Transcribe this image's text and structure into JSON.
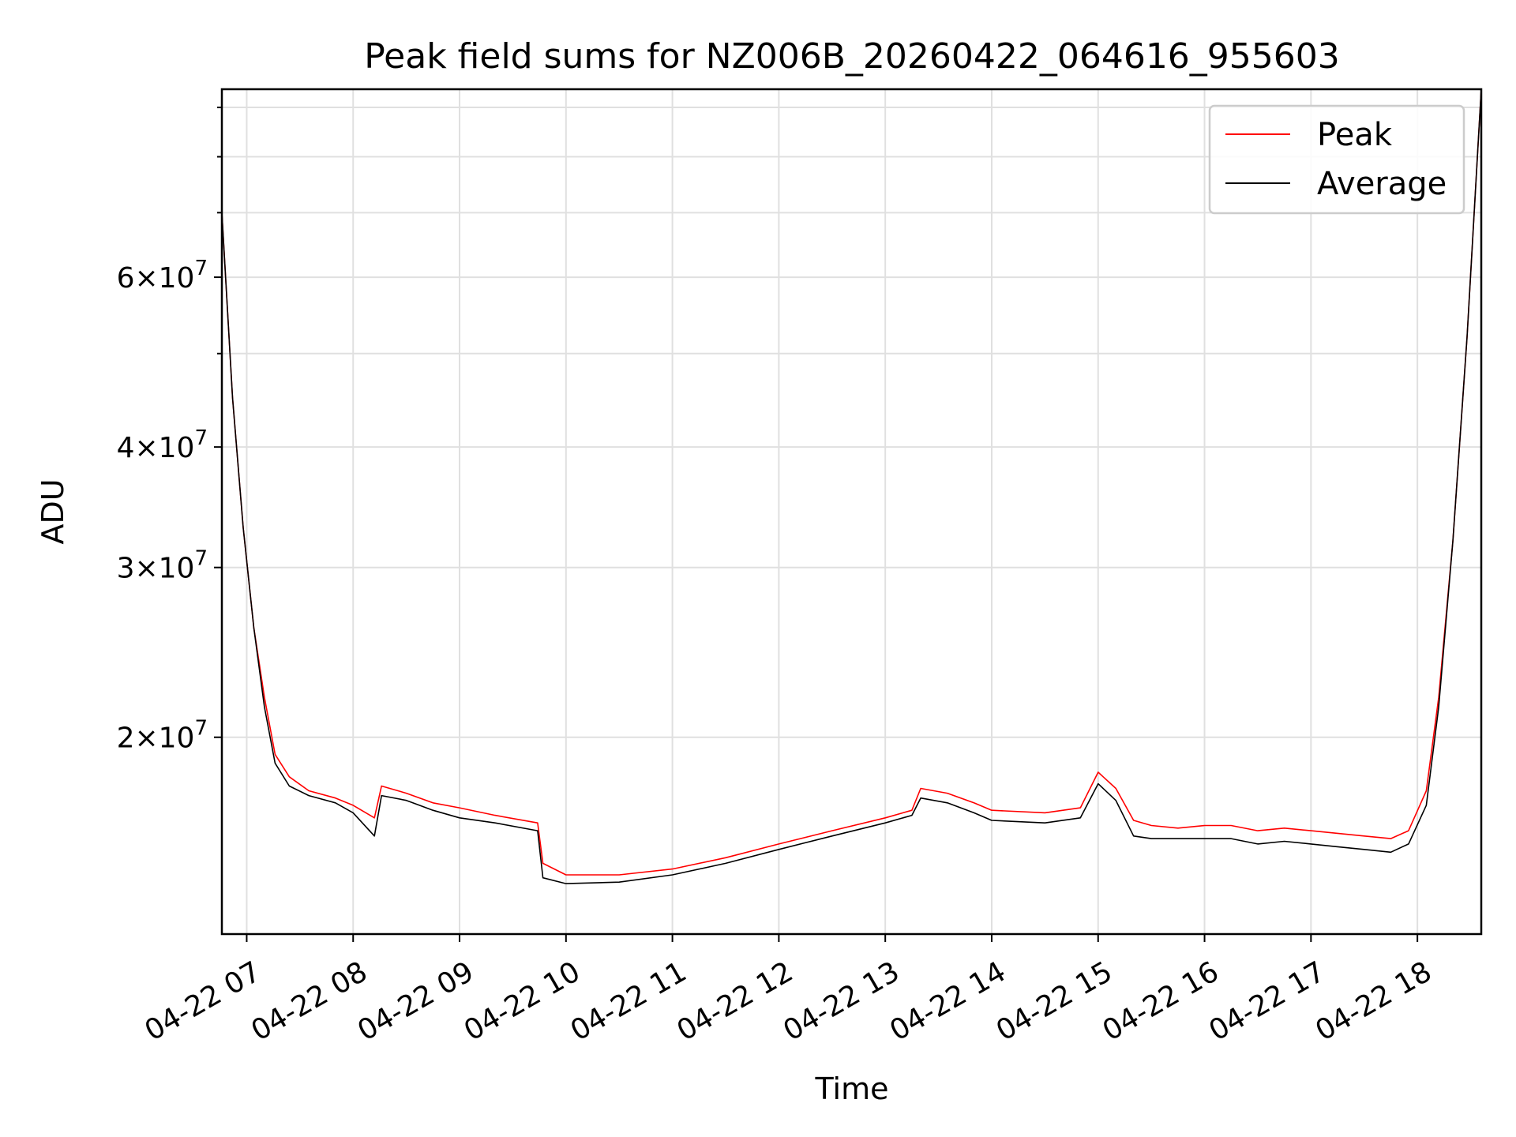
{
  "chart_data": {
    "type": "line",
    "title": "Peak field sums for NZ006B_20260422_064616_955603",
    "xlabel": "Time",
    "ylabel": "ADU",
    "y_scale": "log",
    "ylim": [
      12500000,
      94000000
    ],
    "xlim": [
      "2026-04-22 06:46",
      "2026-04-22 18:36"
    ],
    "x_ticks": [
      "04-22 07",
      "04-22 08",
      "04-22 09",
      "04-22 10",
      "04-22 11",
      "04-22 12",
      "04-22 13",
      "04-22 14",
      "04-22 15",
      "04-22 16",
      "04-22 17",
      "04-22 18"
    ],
    "y_ticks": [
      {
        "value": 20000000,
        "mantissa": "2",
        "exponent": "7"
      },
      {
        "value": 30000000,
        "mantissa": "3",
        "exponent": "7"
      },
      {
        "value": 40000000,
        "mantissa": "4",
        "exponent": "7"
      },
      {
        "value": 60000000,
        "mantissa": "6",
        "exponent": "7"
      }
    ],
    "grid": true,
    "legend_position": "top-right",
    "series": [
      {
        "name": "Peak",
        "color": "#ff0000",
        "x": [
          "2026-04-22 06:46",
          "2026-04-22 06:52",
          "2026-04-22 06:58",
          "2026-04-22 07:04",
          "2026-04-22 07:10",
          "2026-04-22 07:16",
          "2026-04-22 07:24",
          "2026-04-22 07:35",
          "2026-04-22 07:50",
          "2026-04-22 08:00",
          "2026-04-22 08:12",
          "2026-04-22 08:16",
          "2026-04-22 08:30",
          "2026-04-22 08:45",
          "2026-04-22 09:00",
          "2026-04-22 09:20",
          "2026-04-22 09:44",
          "2026-04-22 09:47",
          "2026-04-22 10:00",
          "2026-04-22 10:30",
          "2026-04-22 11:00",
          "2026-04-22 11:30",
          "2026-04-22 12:00",
          "2026-04-22 12:30",
          "2026-04-22 13:00",
          "2026-04-22 13:15",
          "2026-04-22 13:20",
          "2026-04-22 13:35",
          "2026-04-22 13:50",
          "2026-04-22 14:00",
          "2026-04-22 14:30",
          "2026-04-22 14:50",
          "2026-04-22 15:00",
          "2026-04-22 15:10",
          "2026-04-22 15:20",
          "2026-04-22 15:30",
          "2026-04-22 15:45",
          "2026-04-22 16:00",
          "2026-04-22 16:15",
          "2026-04-22 16:30",
          "2026-04-22 16:45",
          "2026-04-22 17:00",
          "2026-04-22 17:15",
          "2026-04-22 17:30",
          "2026-04-22 17:45",
          "2026-04-22 17:55",
          "2026-04-22 18:05",
          "2026-04-22 18:12",
          "2026-04-22 18:20",
          "2026-04-22 18:28",
          "2026-04-22 18:36"
        ],
        "values": [
          70000000,
          45000000,
          33000000,
          26000000,
          22000000,
          19200000,
          18200000,
          17600000,
          17300000,
          17000000,
          16500000,
          17800000,
          17500000,
          17100000,
          16900000,
          16600000,
          16300000,
          14800000,
          14400000,
          14400000,
          14600000,
          15000000,
          15500000,
          16000000,
          16500000,
          16800000,
          17700000,
          17500000,
          17100000,
          16800000,
          16700000,
          16900000,
          18400000,
          17700000,
          16400000,
          16200000,
          16100000,
          16200000,
          16200000,
          16000000,
          16100000,
          16000000,
          15900000,
          15800000,
          15700000,
          16000000,
          17600000,
          22000000,
          32000000,
          52000000,
          94000000
        ]
      },
      {
        "name": "Average",
        "color": "#000000",
        "x": [
          "2026-04-22 06:46",
          "2026-04-22 06:52",
          "2026-04-22 06:58",
          "2026-04-22 07:04",
          "2026-04-22 07:10",
          "2026-04-22 07:16",
          "2026-04-22 07:24",
          "2026-04-22 07:35",
          "2026-04-22 07:50",
          "2026-04-22 08:00",
          "2026-04-22 08:12",
          "2026-04-22 08:16",
          "2026-04-22 08:30",
          "2026-04-22 08:45",
          "2026-04-22 09:00",
          "2026-04-22 09:20",
          "2026-04-22 09:44",
          "2026-04-22 09:47",
          "2026-04-22 10:00",
          "2026-04-22 10:30",
          "2026-04-22 11:00",
          "2026-04-22 11:30",
          "2026-04-22 12:00",
          "2026-04-22 12:30",
          "2026-04-22 13:00",
          "2026-04-22 13:15",
          "2026-04-22 13:20",
          "2026-04-22 13:35",
          "2026-04-22 13:50",
          "2026-04-22 14:00",
          "2026-04-22 14:30",
          "2026-04-22 14:50",
          "2026-04-22 15:00",
          "2026-04-22 15:10",
          "2026-04-22 15:20",
          "2026-04-22 15:30",
          "2026-04-22 15:45",
          "2026-04-22 16:00",
          "2026-04-22 16:15",
          "2026-04-22 16:30",
          "2026-04-22 16:45",
          "2026-04-22 17:00",
          "2026-04-22 17:15",
          "2026-04-22 17:30",
          "2026-04-22 17:45",
          "2026-04-22 17:55",
          "2026-04-22 18:05",
          "2026-04-22 18:12",
          "2026-04-22 18:20",
          "2026-04-22 18:28",
          "2026-04-22 18:36"
        ],
        "values": [
          70000000,
          45000000,
          33000000,
          26000000,
          21500000,
          18800000,
          17800000,
          17400000,
          17100000,
          16700000,
          15800000,
          17400000,
          17200000,
          16800000,
          16500000,
          16300000,
          16000000,
          14300000,
          14100000,
          14150000,
          14400000,
          14800000,
          15300000,
          15800000,
          16300000,
          16600000,
          17300000,
          17100000,
          16700000,
          16400000,
          16300000,
          16500000,
          17900000,
          17200000,
          15800000,
          15700000,
          15700000,
          15700000,
          15700000,
          15500000,
          15600000,
          15500000,
          15400000,
          15300000,
          15200000,
          15500000,
          17000000,
          21500000,
          32000000,
          52000000,
          94000000
        ]
      }
    ]
  }
}
